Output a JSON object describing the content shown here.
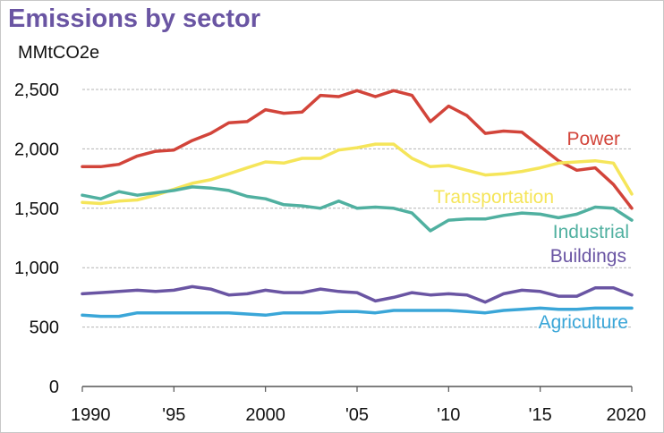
{
  "chart_data": {
    "type": "line",
    "title": "Emissions by sector",
    "ylabel": "MMtCO2e",
    "xlabel": "",
    "ylim": [
      0,
      2500
    ],
    "xlim": [
      1990,
      2020
    ],
    "y_ticks": [
      0,
      500,
      1000,
      1500,
      2000,
      2500
    ],
    "y_tick_labels": [
      "0",
      "500",
      "1,000",
      "1,500",
      "2,000",
      "2,500"
    ],
    "x_ticks": [
      1990,
      1995,
      2000,
      2005,
      2010,
      2015,
      2020
    ],
    "x_tick_labels": [
      "1990",
      "'95",
      "2000",
      "'05",
      "'10",
      "'15",
      "2020"
    ],
    "grid": "horizontal-dashed",
    "legend": "inline-labels-right",
    "x": [
      1990,
      1991,
      1992,
      1993,
      1994,
      1995,
      1996,
      1997,
      1998,
      1999,
      2000,
      2001,
      2002,
      2003,
      2004,
      2005,
      2006,
      2007,
      2008,
      2009,
      2010,
      2011,
      2012,
      2013,
      2014,
      2015,
      2016,
      2017,
      2018,
      2019,
      2020
    ],
    "series": [
      {
        "name": "Power",
        "color": "#d2443a",
        "values": [
          1850,
          1850,
          1870,
          1940,
          1980,
          1990,
          2070,
          2130,
          2220,
          2230,
          2330,
          2300,
          2310,
          2450,
          2440,
          2490,
          2440,
          2490,
          2450,
          2230,
          2360,
          2280,
          2130,
          2150,
          2140,
          2020,
          1900,
          1820,
          1840,
          1700,
          1500
        ]
      },
      {
        "name": "Transportation",
        "color": "#f5e55a",
        "values": [
          1550,
          1540,
          1560,
          1570,
          1610,
          1660,
          1710,
          1740,
          1790,
          1840,
          1890,
          1880,
          1920,
          1920,
          1990,
          2010,
          2040,
          2040,
          1920,
          1850,
          1860,
          1820,
          1780,
          1790,
          1810,
          1840,
          1880,
          1890,
          1900,
          1880,
          1620
        ]
      },
      {
        "name": "Industrial",
        "color": "#50b0a0",
        "values": [
          1610,
          1580,
          1640,
          1610,
          1630,
          1650,
          1680,
          1670,
          1650,
          1600,
          1580,
          1530,
          1520,
          1500,
          1560,
          1500,
          1510,
          1500,
          1460,
          1310,
          1400,
          1410,
          1410,
          1440,
          1460,
          1450,
          1420,
          1450,
          1510,
          1500,
          1400
        ]
      },
      {
        "name": "Buildings",
        "color": "#6a55a3",
        "values": [
          780,
          790,
          800,
          810,
          800,
          810,
          840,
          820,
          770,
          780,
          810,
          790,
          790,
          820,
          800,
          790,
          720,
          750,
          790,
          770,
          780,
          770,
          710,
          780,
          810,
          800,
          760,
          760,
          830,
          830,
          770
        ]
      },
      {
        "name": "Agriculture",
        "color": "#3aa6d8",
        "values": [
          600,
          590,
          590,
          620,
          620,
          620,
          620,
          620,
          620,
          610,
          600,
          620,
          620,
          620,
          630,
          630,
          620,
          640,
          640,
          640,
          640,
          630,
          620,
          640,
          650,
          660,
          650,
          650,
          660,
          660,
          660
        ]
      }
    ]
  }
}
